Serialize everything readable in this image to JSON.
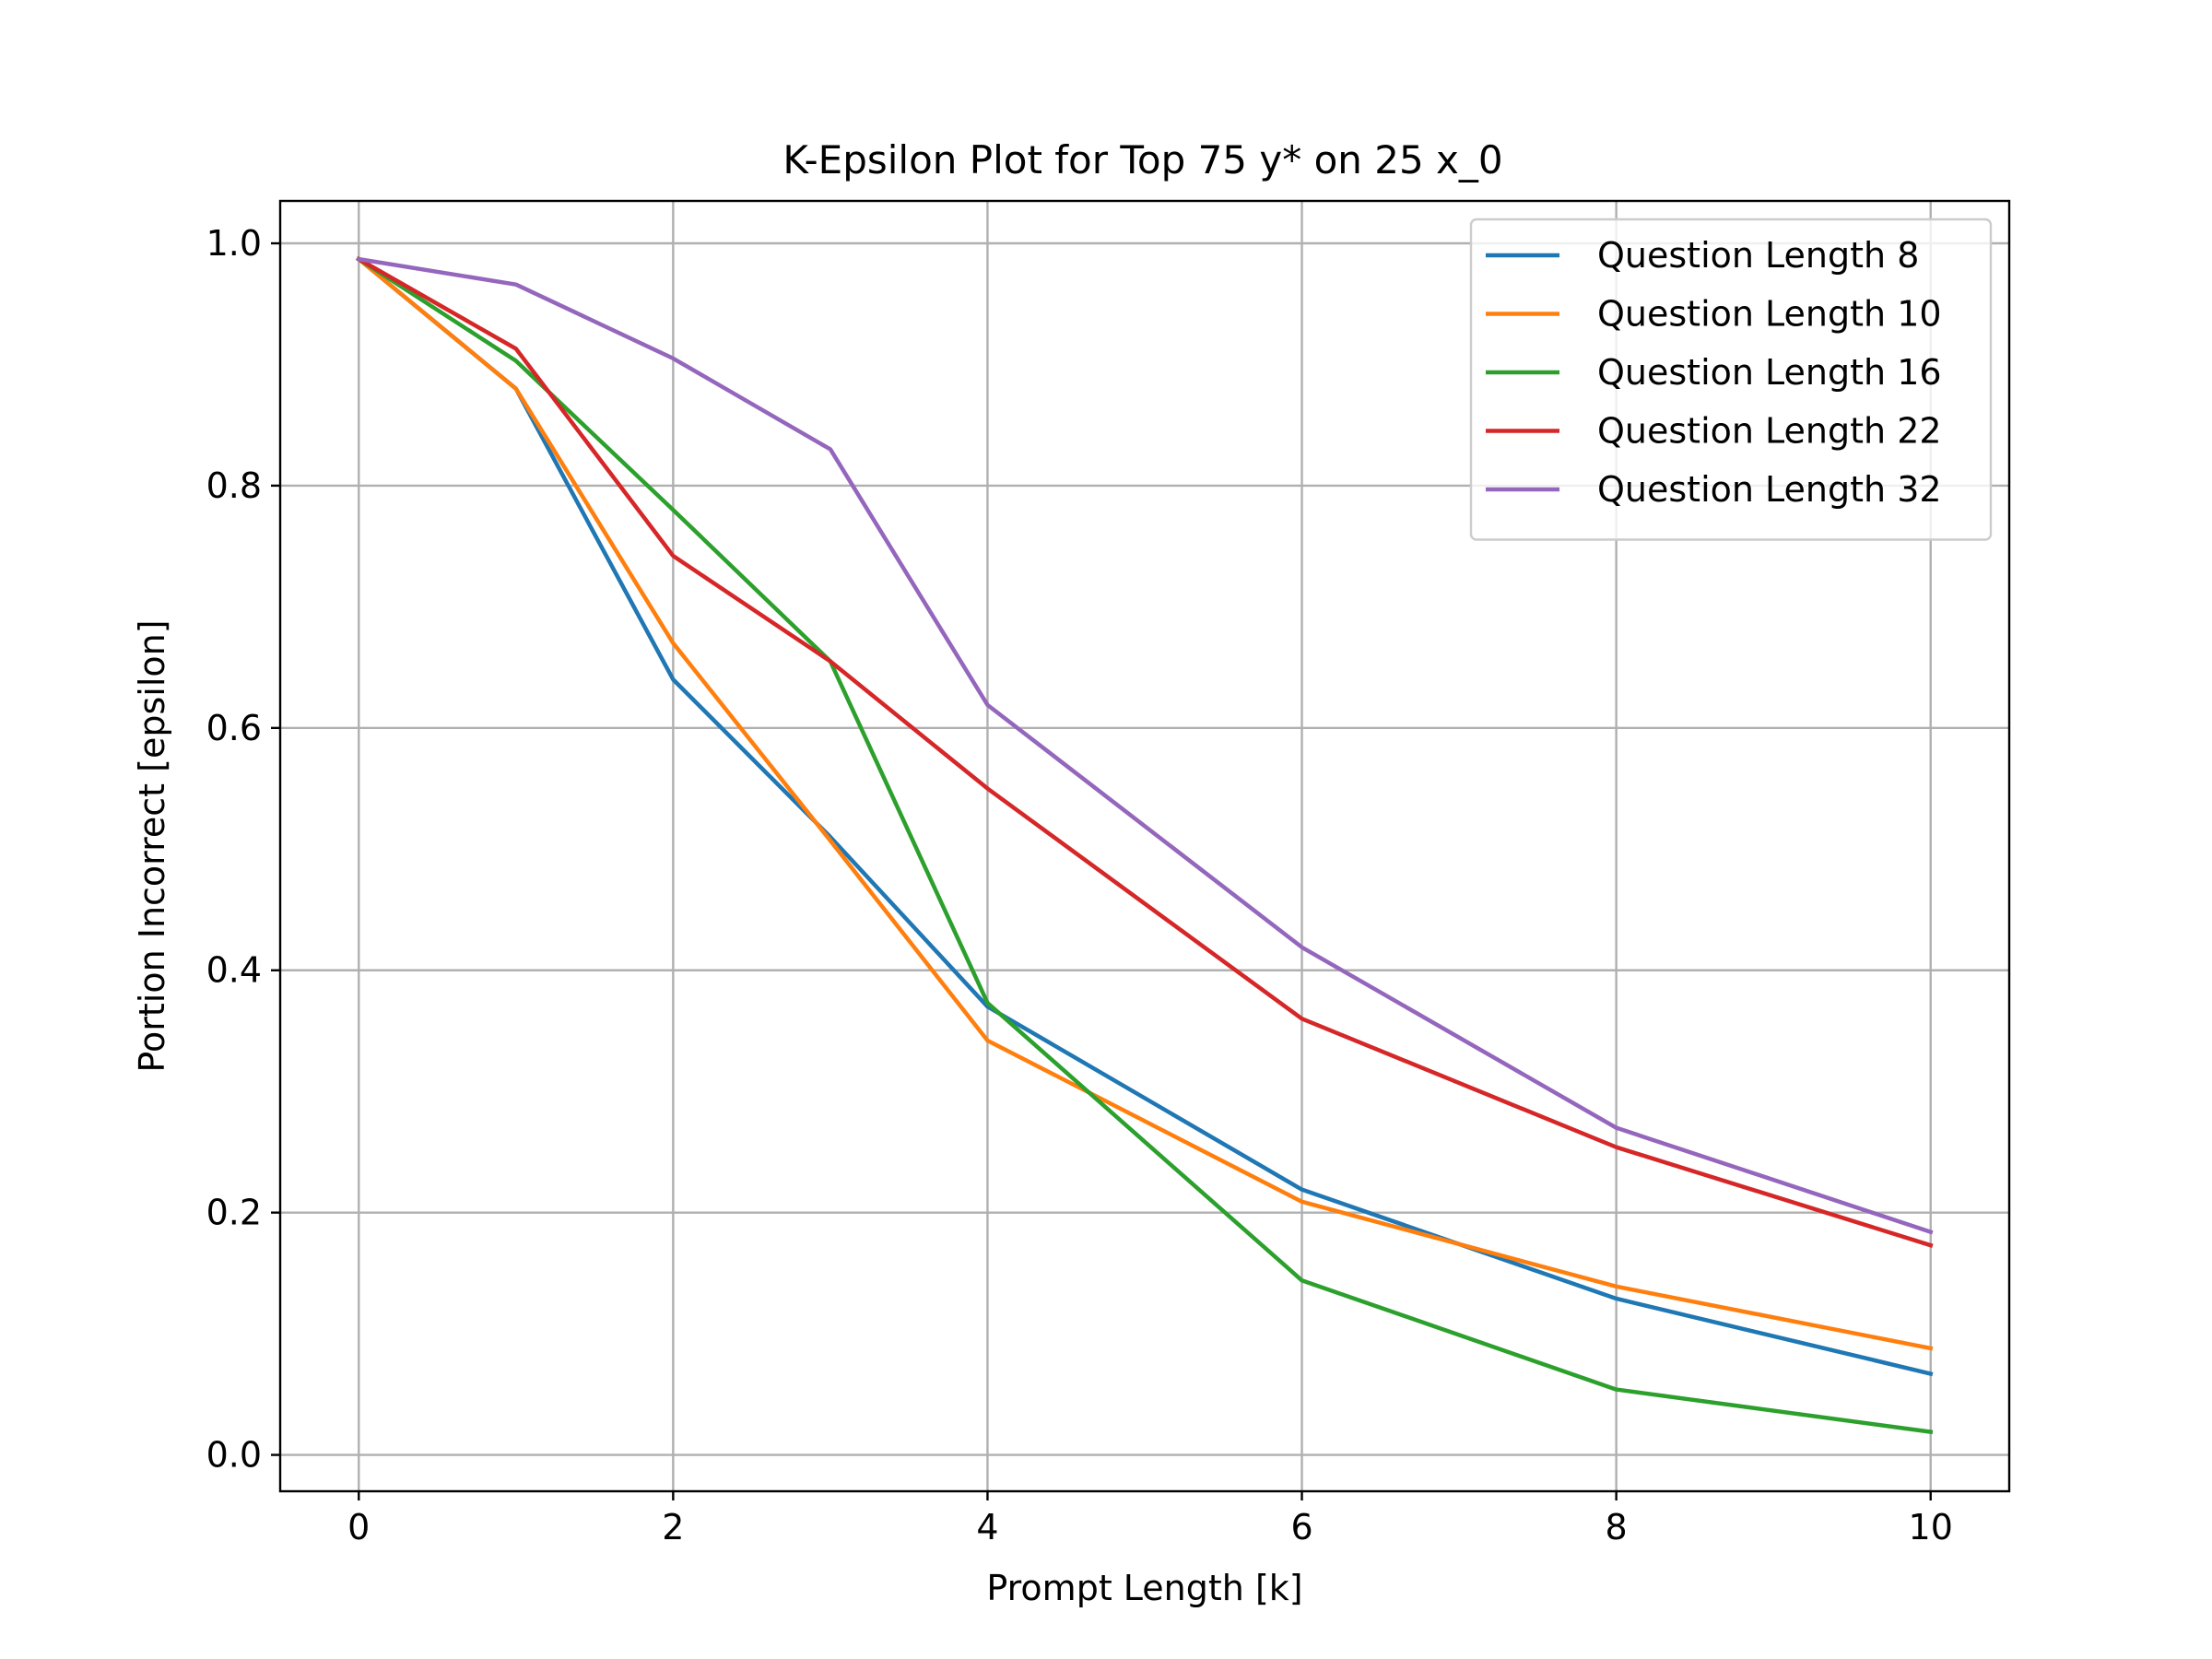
{
  "chart_data": {
    "type": "line",
    "title": "K-Epsilon Plot for Top 75 y* on 25 x_0",
    "xlabel": "Prompt Length [k]",
    "ylabel": "Portion Incorrect [epsilon]",
    "xlim": [
      -0.5,
      10.5
    ],
    "ylim": [
      -0.03,
      1.035
    ],
    "xticks": [
      0,
      2,
      4,
      6,
      8,
      10
    ],
    "xtick_labels": [
      "0",
      "2",
      "4",
      "6",
      "8",
      "10"
    ],
    "yticks": [
      0.0,
      0.2,
      0.4,
      0.6,
      0.8,
      1.0
    ],
    "ytick_labels": [
      "0.0",
      "0.2",
      "0.4",
      "0.6",
      "0.8",
      "1.0"
    ],
    "grid": true,
    "legend_position": "top-right",
    "x": [
      0,
      1,
      2,
      3,
      4,
      6,
      8,
      10
    ],
    "series": [
      {
        "name": "Question Length 8",
        "color": "#1f77b4",
        "values": [
          0.987,
          0.88,
          0.64,
          0.51,
          0.37,
          0.219,
          0.129,
          0.067
        ]
      },
      {
        "name": "Question Length 10",
        "color": "#ff7f0e",
        "values": [
          0.987,
          0.88,
          0.67,
          0.507,
          0.342,
          0.209,
          0.139,
          0.088
        ]
      },
      {
        "name": "Question Length 16",
        "color": "#2ca02c",
        "values": [
          0.987,
          0.903,
          0.78,
          0.655,
          0.373,
          0.144,
          0.054,
          0.019
        ]
      },
      {
        "name": "Question Length 22",
        "color": "#d62728",
        "values": [
          0.987,
          0.913,
          0.742,
          0.655,
          0.55,
          0.36,
          0.254,
          0.173
        ]
      },
      {
        "name": "Question Length 32",
        "color": "#9467bd",
        "values": [
          0.987,
          0.966,
          0.905,
          0.83,
          0.619,
          0.419,
          0.27,
          0.184
        ]
      }
    ]
  }
}
